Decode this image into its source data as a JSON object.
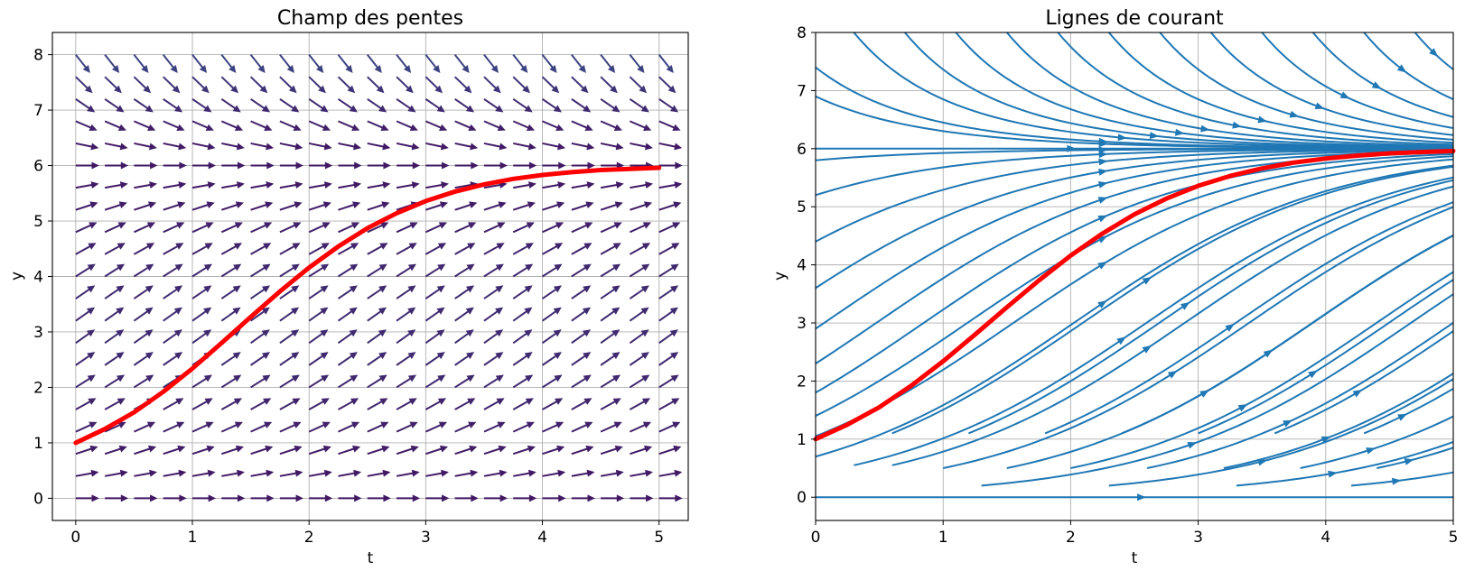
{
  "chart_data": [
    {
      "type": "quiver",
      "title": "Champ des pentes",
      "xlabel": "t",
      "ylabel": "y",
      "xlim": [
        -0.2,
        5.25
      ],
      "ylim": [
        -0.4,
        8.4
      ],
      "xticks": [
        "0",
        "1",
        "2",
        "3",
        "4",
        "5"
      ],
      "yticks": [
        "0",
        "1",
        "2",
        "3",
        "4",
        "5",
        "6",
        "7",
        "8"
      ],
      "grid": true,
      "equation": {
        "r": 1,
        "K": 6
      },
      "field": {
        "t_start": 0,
        "t_step": 0.25,
        "t_count": 21,
        "y_start": 0,
        "y_step": 0.4,
        "y_count": 21
      },
      "colormap": "viridis",
      "solution": {
        "color": "#ff0000",
        "t": [
          0,
          0.25,
          0.5,
          0.75,
          1.0,
          1.25,
          1.5,
          1.75,
          2.0,
          2.25,
          2.5,
          2.75,
          3.0,
          3.25,
          3.5,
          3.75,
          4.0,
          4.25,
          4.5,
          4.75,
          5.0
        ],
        "y": [
          1.0,
          1.25,
          1.55,
          1.92,
          2.34,
          2.8,
          3.27,
          3.73,
          4.16,
          4.54,
          4.87,
          5.14,
          5.36,
          5.53,
          5.66,
          5.76,
          5.83,
          5.88,
          5.92,
          5.94,
          5.96
        ]
      }
    },
    {
      "type": "streamplot",
      "title": "Lignes de courant",
      "xlabel": "t",
      "ylabel": "y",
      "xlim": [
        0,
        5
      ],
      "ylim": [
        -0.4,
        8
      ],
      "xticks": [
        "0",
        "1",
        "2",
        "3",
        "4",
        "5"
      ],
      "yticks": [
        "0",
        "1",
        "2",
        "3",
        "4",
        "5",
        "6",
        "7",
        "8"
      ],
      "grid": true,
      "stream_color": "#1f77b4",
      "solution": {
        "color": "#ff0000",
        "t": [
          0,
          0.25,
          0.5,
          0.75,
          1.0,
          1.25,
          1.5,
          1.75,
          2.0,
          2.25,
          2.5,
          2.75,
          3.0,
          3.25,
          3.5,
          3.75,
          4.0,
          4.25,
          4.5,
          4.75,
          5.0
        ],
        "y": [
          1.0,
          1.25,
          1.55,
          1.92,
          2.34,
          2.8,
          3.27,
          3.73,
          4.16,
          4.54,
          4.87,
          5.14,
          5.36,
          5.53,
          5.66,
          5.76,
          5.83,
          5.88,
          5.92,
          5.94,
          5.96
        ]
      }
    }
  ]
}
